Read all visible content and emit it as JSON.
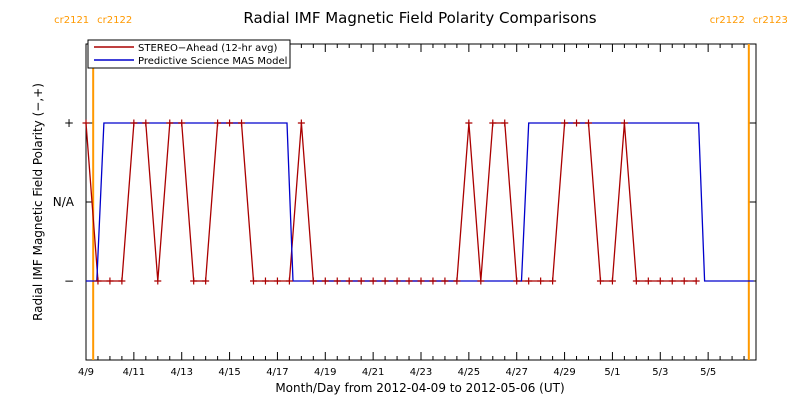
{
  "chart_data": {
    "type": "line",
    "title": "Radial IMF Magnetic Field Polarity Comparisons",
    "xlabel": "Month/Day from 2012-04-09 to 2012-05-06 (UT)",
    "ylabel": "Radial IMF Magnetic Field Polarity (−,+)",
    "x_unit": "days from 2012-04-09 00:00 UT",
    "xlim": [
      0,
      28
    ],
    "ylim": [
      -2,
      2
    ],
    "x_ticks": [
      {
        "x": 0,
        "label": "4/9"
      },
      {
        "x": 2,
        "label": "4/11"
      },
      {
        "x": 4,
        "label": "4/13"
      },
      {
        "x": 6,
        "label": "4/15"
      },
      {
        "x": 8,
        "label": "4/17"
      },
      {
        "x": 10,
        "label": "4/19"
      },
      {
        "x": 12,
        "label": "4/21"
      },
      {
        "x": 14,
        "label": "4/23"
      },
      {
        "x": 16,
        "label": "4/25"
      },
      {
        "x": 18,
        "label": "4/27"
      },
      {
        "x": 20,
        "label": "4/29"
      },
      {
        "x": 22,
        "label": "5/1"
      },
      {
        "x": 24,
        "label": "5/3"
      },
      {
        "x": 26,
        "label": "5/5"
      }
    ],
    "y_ticks": [
      {
        "y": 1,
        "label": "+"
      },
      {
        "y": 0,
        "label": "N/A"
      },
      {
        "y": -1,
        "label": "−"
      }
    ],
    "carrington_markers": [
      {
        "x": 0.3,
        "left_label": "cr2121",
        "right_label": "cr2122"
      },
      {
        "x": 27.7,
        "left_label": "cr2122",
        "right_label": "cr2123"
      }
    ],
    "legend_position": "top-left",
    "series": [
      {
        "name": "STEREO−Ahead (12-hr avg)",
        "color": "#aa0000",
        "marker": "plus",
        "x": [
          0.0,
          0.5,
          1.0,
          1.5,
          2.0,
          2.5,
          3.0,
          3.5,
          4.0,
          4.5,
          5.0,
          5.5,
          6.0,
          6.5,
          7.0,
          7.5,
          8.0,
          8.5,
          9.0,
          9.5,
          10.0,
          10.5,
          11.0,
          11.5,
          12.0,
          12.5,
          13.0,
          13.5,
          14.0,
          14.5,
          15.0,
          15.5,
          16.0,
          16.5,
          17.0,
          17.5,
          18.0,
          18.5,
          19.0,
          19.5,
          20.0,
          20.5,
          21.0,
          21.5,
          22.0,
          22.5,
          23.0,
          23.5,
          24.0,
          24.5,
          25.0,
          25.5
        ],
        "y": [
          1,
          -1,
          -1,
          -1,
          1,
          1,
          -1,
          1,
          1,
          -1,
          -1,
          1,
          1,
          1,
          -1,
          -1,
          -1,
          -1,
          1,
          -1,
          -1,
          -1,
          -1,
          -1,
          -1,
          -1,
          -1,
          -1,
          -1,
          -1,
          -1,
          -1,
          1,
          -1,
          1,
          1,
          -1,
          -1,
          -1,
          -1,
          1,
          1,
          1,
          -1,
          -1,
          1,
          -1,
          -1,
          -1,
          -1,
          -1,
          -1
        ]
      },
      {
        "name": "Predictive Science MAS Model",
        "color": "#0000cc",
        "marker": "none",
        "x": [
          0.0,
          0.45,
          0.75,
          1.1,
          8.4,
          8.65,
          18.2,
          18.5,
          25.6,
          25.85,
          27.9
        ],
        "y": [
          -1,
          -1,
          1,
          1,
          1,
          -1,
          -1,
          1,
          1,
          -1,
          -1
        ]
      }
    ]
  }
}
